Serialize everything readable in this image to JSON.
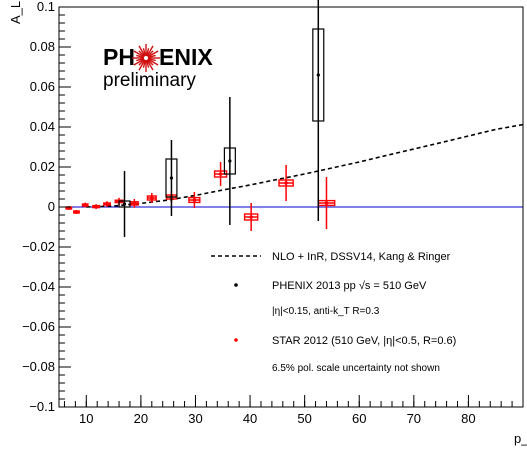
{
  "chart_data": {
    "type": "scatter",
    "title": "",
    "ylabel": "A_LL",
    "xlabel": "p_T",
    "xlim": [
      5,
      90
    ],
    "ylim": [
      -0.1,
      0.1
    ],
    "x_ticks": [
      10,
      20,
      30,
      40,
      50,
      60,
      70,
      80
    ],
    "y_ticks": [
      -0.1,
      -0.08,
      -0.06,
      -0.04,
      -0.02,
      0,
      0.02,
      0.04,
      0.06,
      0.08,
      0.1
    ],
    "x_tick_labels": [
      "10",
      "20",
      "30",
      "40",
      "50",
      "60",
      "70",
      "80"
    ],
    "y_tick_labels": [
      "−0.1",
      "−0.08",
      "−0.06",
      "−0.04",
      "−0.02",
      "0",
      "0.02",
      "0.04",
      "0.06",
      "0.08",
      "0.1"
    ],
    "grid": false,
    "zero_line": true,
    "colors": {
      "phenix": "#000000",
      "star": "#ff0000",
      "zero_line": "#0000cc",
      "theory": "#000000"
    },
    "logo": {
      "text_left": "PH",
      "text_right": "ENIX",
      "subtitle": "preliminary"
    },
    "legend": {
      "placement": "bottom-right",
      "entries": [
        {
          "name": "NLO + InR, DSSV14, Kang & Ringer",
          "marker": "dashed-line"
        },
        {
          "name": "PHENIX 2013 pp √s = 510 GeV",
          "marker": "black-dot"
        },
        {
          "name": "|η|<0.15, anti-k_T R=0.3",
          "marker": "none"
        },
        {
          "name": "STAR 2012 (510 GeV, |η|<0.5, R=0.6)",
          "marker": "red-dot"
        },
        {
          "name": "6.5% pol. scale uncertainty not shown",
          "marker": "none"
        }
      ]
    },
    "series": [
      {
        "name": "PHENIX 2013 pp √s = 510 GeV",
        "points": [
          {
            "x": 17.0,
            "y": 0.0015,
            "stat_err": 0.0165,
            "sys_err": 0.0015,
            "x_halfwidth": 1.0
          },
          {
            "x": 25.6,
            "y": 0.0145,
            "stat_err": 0.019,
            "sys_err": 0.0095,
            "x_halfwidth": 1.0
          },
          {
            "x": 36.3,
            "y": 0.023,
            "stat_err": 0.032,
            "sys_err": 0.0065,
            "x_halfwidth": 1.0
          },
          {
            "x": 52.5,
            "y": 0.066,
            "stat_err": 0.073,
            "sys_err": 0.023,
            "x_halfwidth": 1.0
          }
        ]
      },
      {
        "name": "STAR 2012 (510 GeV, |η|<0.5, R=0.6)",
        "points": [
          {
            "x": 6.8,
            "y": -0.0005,
            "stat_err": 0.001,
            "sys_err": 0.0005,
            "x_halfwidth": 0.5
          },
          {
            "x": 8.2,
            "y": -0.0025,
            "stat_err": 0.001,
            "sys_err": 0.0005,
            "x_halfwidth": 0.5
          },
          {
            "x": 9.8,
            "y": 0.001,
            "stat_err": 0.0012,
            "sys_err": 0.0005,
            "x_halfwidth": 0.5
          },
          {
            "x": 11.8,
            "y": 0.0002,
            "stat_err": 0.0012,
            "sys_err": 0.0005,
            "x_halfwidth": 0.6
          },
          {
            "x": 13.8,
            "y": 0.0015,
            "stat_err": 0.0014,
            "sys_err": 0.0005,
            "x_halfwidth": 0.6
          },
          {
            "x": 16.0,
            "y": 0.0028,
            "stat_err": 0.0018,
            "sys_err": 0.0006,
            "x_halfwidth": 0.7
          },
          {
            "x": 18.8,
            "y": 0.0018,
            "stat_err": 0.0022,
            "sys_err": 0.0008,
            "x_halfwidth": 0.7
          },
          {
            "x": 22.0,
            "y": 0.0045,
            "stat_err": 0.0025,
            "sys_err": 0.001,
            "x_halfwidth": 0.8
          },
          {
            "x": 25.6,
            "y": 0.005,
            "stat_err": 0.003,
            "sys_err": 0.001,
            "x_halfwidth": 0.9
          },
          {
            "x": 29.8,
            "y": 0.0035,
            "stat_err": 0.004,
            "sys_err": 0.0012,
            "x_halfwidth": 1.0
          },
          {
            "x": 34.6,
            "y": 0.0165,
            "stat_err": 0.006,
            "sys_err": 0.0015,
            "x_halfwidth": 1.1
          },
          {
            "x": 40.2,
            "y": -0.005,
            "stat_err": 0.007,
            "sys_err": 0.0015,
            "x_halfwidth": 1.2
          },
          {
            "x": 46.6,
            "y": 0.012,
            "stat_err": 0.009,
            "sys_err": 0.0015,
            "x_halfwidth": 1.3
          },
          {
            "x": 54.0,
            "y": 0.002,
            "stat_err": 0.013,
            "sys_err": 0.0012,
            "x_halfwidth": 1.5
          }
        ]
      },
      {
        "name": "NLO + InR, DSSV14, Kang & Ringer",
        "line": true,
        "x": [
          10,
          15,
          20,
          25,
          30,
          35,
          40,
          45,
          50,
          55,
          60,
          65,
          70,
          75,
          80,
          85,
          90
        ],
        "values": [
          0.0,
          0.0005,
          0.0018,
          0.0035,
          0.0058,
          0.0085,
          0.011,
          0.0138,
          0.0165,
          0.0195,
          0.0225,
          0.0258,
          0.029,
          0.0322,
          0.0355,
          0.0388,
          0.0412
        ]
      }
    ]
  }
}
